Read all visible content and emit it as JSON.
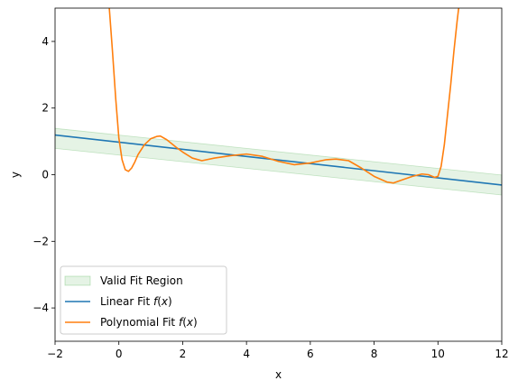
{
  "chart_data": {
    "type": "line",
    "title": "",
    "xlabel": "x",
    "ylabel": "y",
    "xlim": [
      -2,
      12
    ],
    "ylim": [
      -5,
      5
    ],
    "xticks": [
      -2,
      0,
      2,
      4,
      6,
      8,
      10,
      12
    ],
    "xtick_labels": [
      "−2",
      "0",
      "2",
      "4",
      "6",
      "8",
      "10",
      "12"
    ],
    "yticks": [
      -4,
      -2,
      0,
      2,
      4
    ],
    "ytick_labels": [
      "−4",
      "−2",
      "0",
      "2",
      "4"
    ],
    "grid": false,
    "legend_position": "lower-left",
    "legend": [
      {
        "label": "Valid Fit Region",
        "kind": "band",
        "color": "#2ca02c"
      },
      {
        "label": "Linear Fit f(x)",
        "kind": "line",
        "color": "#1f77b4"
      },
      {
        "label": "Polynomial Fit f(x)",
        "kind": "line",
        "color": "#ff7f0e"
      }
    ],
    "series": [
      {
        "name": "Valid Fit Region",
        "type": "band",
        "color": "#2ca02c",
        "x": [
          -2,
          12
        ],
        "lower": [
          0.79,
          -0.61
        ],
        "upper": [
          1.39,
          -0.01
        ]
      },
      {
        "name": "Linear Fit f(x)",
        "type": "line",
        "color": "#1f77b4",
        "x": [
          -2,
          12
        ],
        "values": [
          1.19,
          -0.31
        ]
      },
      {
        "name": "Polynomial Fit f(x)",
        "type": "line",
        "color": "#ff7f0e",
        "x": [
          -0.3,
          -0.2,
          -0.1,
          0.0,
          0.1,
          0.2,
          0.3,
          0.4,
          0.5,
          0.6,
          0.8,
          1.0,
          1.2,
          1.3,
          1.5,
          1.8,
          2.0,
          2.3,
          2.6,
          3.0,
          3.5,
          4.0,
          4.5,
          5.0,
          5.5,
          6.0,
          6.5,
          6.8,
          7.2,
          7.6,
          8.0,
          8.4,
          8.6,
          8.9,
          9.2,
          9.5,
          9.7,
          9.9,
          10.0,
          10.1,
          10.2,
          10.3,
          10.4,
          10.5,
          10.6,
          10.65
        ],
        "values": [
          5.0,
          3.7,
          2.3,
          1.1,
          0.45,
          0.15,
          0.1,
          0.2,
          0.38,
          0.6,
          0.9,
          1.08,
          1.15,
          1.16,
          1.05,
          0.82,
          0.68,
          0.5,
          0.42,
          0.5,
          0.57,
          0.62,
          0.55,
          0.4,
          0.3,
          0.35,
          0.45,
          0.47,
          0.42,
          0.2,
          -0.05,
          -0.22,
          -0.25,
          -0.15,
          -0.05,
          0.02,
          0.0,
          -0.08,
          -0.05,
          0.25,
          0.9,
          1.8,
          2.7,
          3.7,
          4.6,
          5.0
        ]
      }
    ]
  }
}
